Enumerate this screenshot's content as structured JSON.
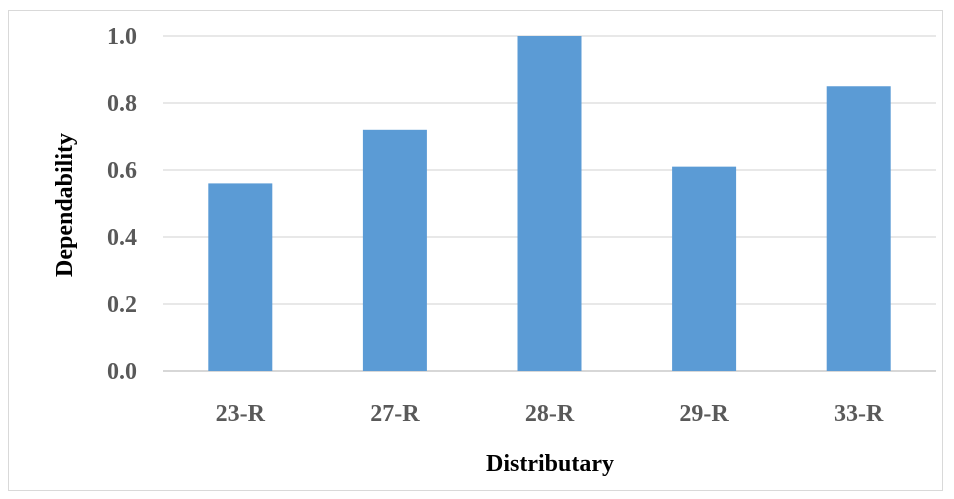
{
  "chart_data": {
    "type": "bar",
    "categories": [
      "23-R",
      "27-R",
      "28-R",
      "29-R",
      "33-R"
    ],
    "values": [
      0.56,
      0.72,
      1.0,
      0.61,
      0.85
    ],
    "title": "",
    "xlabel": "Distributary",
    "ylabel": "Dependability",
    "ylim": [
      0,
      1.0
    ],
    "yticks": [
      "0.0",
      "0.2",
      "0.4",
      "0.6",
      "0.8",
      "1.0"
    ],
    "grid": true,
    "legend": "none",
    "bar_color": "#5b9bd5",
    "grid_color": "#d9d9d9"
  }
}
